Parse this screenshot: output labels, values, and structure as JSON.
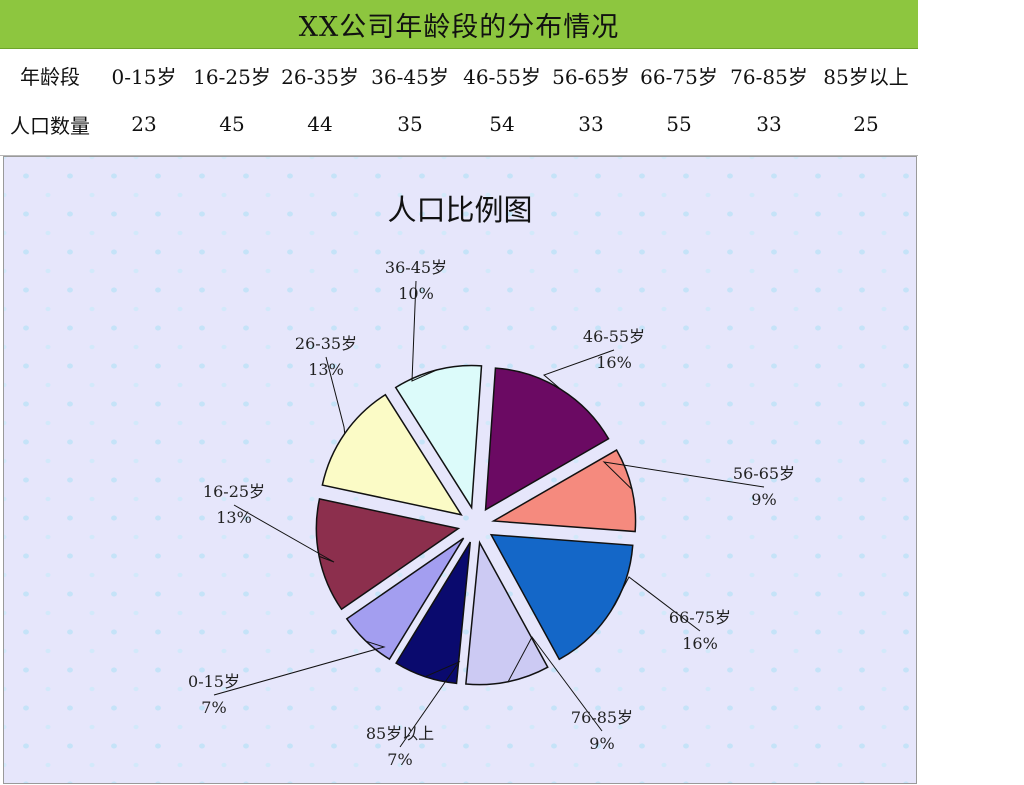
{
  "header": {
    "title": "XX公司年龄段的分布情况"
  },
  "table": {
    "row1_label": "年龄段",
    "row2_label": "人口数量",
    "categories": [
      "0-15岁",
      "16-25岁",
      "26-35岁",
      "36-45岁",
      "46-55岁",
      "56-65岁",
      "66-75岁",
      "76-85岁",
      "85岁以上"
    ],
    "values": [
      "23",
      "45",
      "44",
      "35",
      "54",
      "33",
      "55",
      "33",
      "25"
    ]
  },
  "chart_data": {
    "type": "pie",
    "title": "人口比例图",
    "exploded": true,
    "slices": [
      {
        "category": "46-55岁",
        "value": 54,
        "label": "16%",
        "color": "#6b0a63"
      },
      {
        "category": "56-65岁",
        "value": 33,
        "label": "9%",
        "color": "#f58a7e"
      },
      {
        "category": "66-75岁",
        "value": 55,
        "label": "16%",
        "color": "#1467c8"
      },
      {
        "category": "76-85岁",
        "value": 33,
        "label": "9%",
        "color": "#cccaf3"
      },
      {
        "category": "85岁以上",
        "value": 25,
        "label": "7%",
        "color": "#0a0a6e"
      },
      {
        "category": "0-15岁",
        "value": 23,
        "label": "7%",
        "color": "#a39ef0"
      },
      {
        "category": "16-25岁",
        "value": 45,
        "label": "13%",
        "color": "#8c2f4d"
      },
      {
        "category": "26-35岁",
        "value": 44,
        "label": "13%",
        "color": "#fbfbc6"
      },
      {
        "category": "36-45岁",
        "value": 35,
        "label": "10%",
        "color": "#dcfbfa"
      }
    ]
  }
}
